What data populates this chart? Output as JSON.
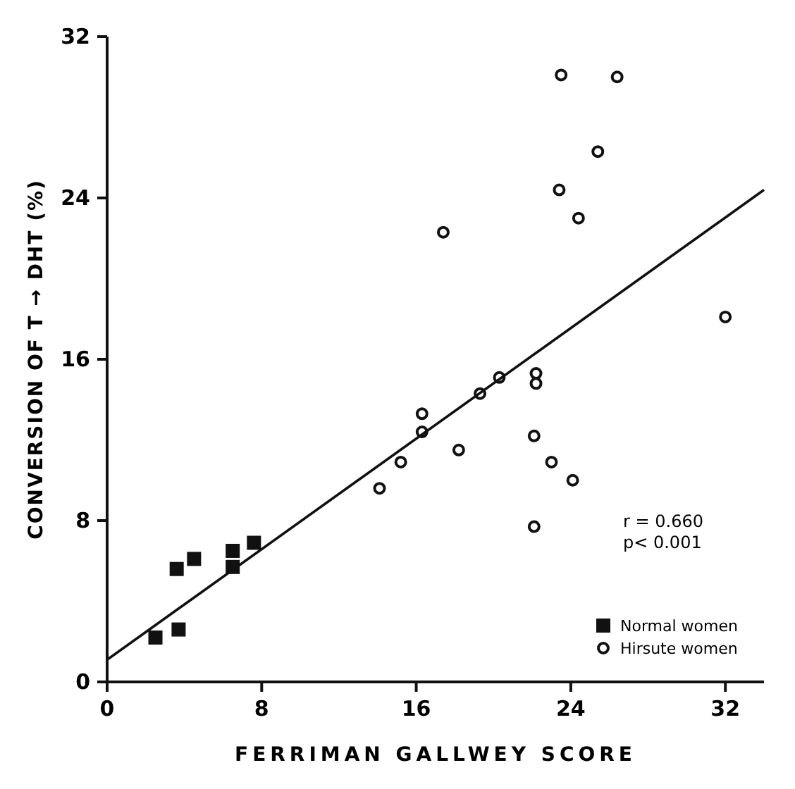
{
  "chart_data": {
    "type": "scatter",
    "xlabel": "FERRIMAN GALLWEY SCORE",
    "ylabel": "CONVERSION OF T → DHT (%)",
    "xlim": [
      0,
      34
    ],
    "ylim": [
      0,
      32
    ],
    "xticks": [
      0,
      8,
      16,
      24,
      32
    ],
    "yticks": [
      0,
      8,
      16,
      24,
      32
    ],
    "grid": false,
    "legend": "bottom right",
    "annotations": [
      "r = 0.660",
      "p< 0.001"
    ],
    "series": [
      {
        "name": "Normal women",
        "color": "#111111",
        "marker": "square",
        "x": [
          2.5,
          3.7,
          3.6,
          4.5,
          6.5,
          6.5,
          7.6
        ],
        "values": [
          2.2,
          2.6,
          5.6,
          6.1,
          6.5,
          5.7,
          6.9
        ]
      },
      {
        "name": "Hirsute women",
        "color": "#111111",
        "marker": "circle",
        "x": [
          14.1,
          15.2,
          16.3,
          16.3,
          18.2,
          19.3,
          20.3,
          22.2,
          22.2,
          22.1,
          23.0,
          24.1,
          22.1,
          17.4,
          24.4,
          32.0,
          23.5,
          26.4,
          25.4,
          23.4
        ],
        "values": [
          9.6,
          10.9,
          12.4,
          13.3,
          11.5,
          14.3,
          15.1,
          15.3,
          14.8,
          12.2,
          10.9,
          10.0,
          7.7,
          22.3,
          23.0,
          18.1,
          30.1,
          30.0,
          26.3,
          24.4
        ]
      },
      {
        "type": "line",
        "color": "#111111",
        "marker": "none",
        "x": [
          0,
          34
        ],
        "values": [
          1.1,
          24.4
        ]
      }
    ]
  }
}
